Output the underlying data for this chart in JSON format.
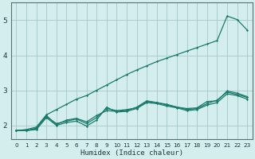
{
  "bg_color": "#d4eeee",
  "grid_color": "#aacccc",
  "line_color": "#1a7a6a",
  "xlabel": "Humidex (Indice chaleur)",
  "xlim": [
    -0.5,
    23.5
  ],
  "ylim": [
    1.6,
    5.5
  ],
  "yticks": [
    2,
    3,
    4,
    5
  ],
  "xticks": [
    0,
    1,
    2,
    3,
    4,
    5,
    6,
    7,
    8,
    9,
    10,
    11,
    12,
    13,
    14,
    15,
    16,
    17,
    18,
    19,
    20,
    21,
    22,
    23
  ],
  "series": [
    [
      1.85,
      1.88,
      1.95,
      2.3,
      2.45,
      2.6,
      2.75,
      2.85,
      3.0,
      3.15,
      3.3,
      3.45,
      3.58,
      3.7,
      3.82,
      3.92,
      4.02,
      4.12,
      4.22,
      4.32,
      4.42,
      5.12,
      5.02,
      4.72
    ],
    [
      1.85,
      1.85,
      1.92,
      2.25,
      2.05,
      2.12,
      2.18,
      2.05,
      2.22,
      2.48,
      2.42,
      2.45,
      2.5,
      2.68,
      2.65,
      2.58,
      2.52,
      2.45,
      2.48,
      2.62,
      2.72,
      2.95,
      2.88,
      2.8
    ],
    [
      1.85,
      1.85,
      1.88,
      2.22,
      2.0,
      2.08,
      2.12,
      1.98,
      2.15,
      2.52,
      2.38,
      2.4,
      2.48,
      2.65,
      2.62,
      2.55,
      2.5,
      2.42,
      2.45,
      2.58,
      2.65,
      2.9,
      2.85,
      2.75
    ],
    [
      1.85,
      1.85,
      1.9,
      2.28,
      2.02,
      2.15,
      2.2,
      2.1,
      2.28,
      2.42,
      2.4,
      2.42,
      2.52,
      2.7,
      2.65,
      2.6,
      2.52,
      2.48,
      2.5,
      2.68,
      2.7,
      2.98,
      2.92,
      2.82
    ]
  ]
}
